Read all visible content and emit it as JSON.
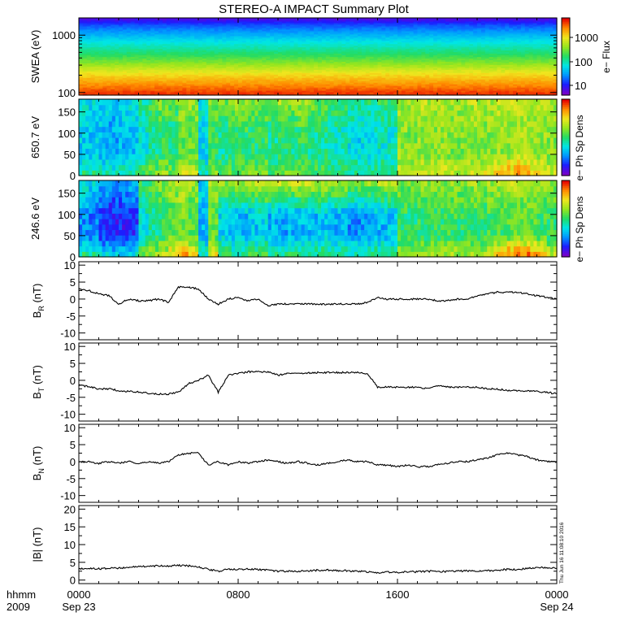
{
  "title": "STEREO-A IMPACT Summary Plot",
  "x_axis": {
    "ticks": [
      "0000",
      "0800",
      "1600",
      "0000"
    ],
    "date_ticks": [
      "Sep 23",
      "",
      "",
      "Sep 24"
    ],
    "unit_label": "hhmm",
    "year_label": "2009",
    "range_hours": [
      0,
      24
    ]
  },
  "timestamp": "Thu Jun 16 11:08:10 2016",
  "colors": {
    "line": "#000000",
    "colormap": [
      "#7a00c8",
      "#1c1cff",
      "#0096ff",
      "#00e6e6",
      "#23dc64",
      "#96e61e",
      "#f0e61e",
      "#ff8c00",
      "#e60000"
    ]
  },
  "chart_data": [
    {
      "type": "heatmap",
      "panel": "swea",
      "ylabel": "SWEA (eV)",
      "yscale": "log",
      "ylim": [
        90,
        2000
      ],
      "yticks": [
        "1000",
        "100"
      ],
      "colorbar": {
        "label": "e− Flux",
        "scale": "log",
        "ticks": [
          "1000",
          "100",
          "10"
        ]
      },
      "bands_eV": [
        100,
        150,
        220,
        320,
        470,
        700,
        1000,
        1500,
        2000
      ],
      "band_levels": [
        0.95,
        0.85,
        0.75,
        0.62,
        0.5,
        0.4,
        0.3,
        0.18,
        0.05
      ]
    },
    {
      "type": "heatmap",
      "panel": "pad-650",
      "ylabel": "650.7 eV",
      "ylim": [
        0,
        180
      ],
      "yticks": [
        "150",
        "100",
        "50",
        "0"
      ],
      "colorbar": {
        "label": "e− Ph Sp Dens"
      },
      "x_hours": [
        0,
        0.5,
        1,
        1.5,
        2,
        2.5,
        3,
        3.5,
        4,
        4.5,
        5,
        5.5,
        6,
        6.5,
        7,
        7.5,
        8,
        8.5,
        9,
        9.5,
        10,
        10.5,
        11,
        11.5,
        12,
        12.5,
        13,
        13.5,
        14,
        14.5,
        15,
        15.5,
        16,
        16.5,
        17,
        17.5,
        18,
        18.5,
        19,
        19.5,
        20,
        20.5,
        21,
        21.5,
        22,
        22.5,
        23,
        23.5
      ],
      "base_level": [
        0.33,
        0.32,
        0.3,
        0.28,
        0.3,
        0.32,
        0.4,
        0.45,
        0.5,
        0.46,
        0.58,
        0.57,
        0.35,
        0.5,
        0.45,
        0.47,
        0.5,
        0.48,
        0.5,
        0.45,
        0.5,
        0.47,
        0.5,
        0.45,
        0.45,
        0.42,
        0.4,
        0.38,
        0.35,
        0.38,
        0.4,
        0.4,
        0.62,
        0.6,
        0.62,
        0.6,
        0.62,
        0.6,
        0.6,
        0.62,
        0.6,
        0.6,
        0.62,
        0.62,
        0.64,
        0.62,
        0.62,
        0.6
      ],
      "high_pitch_boost": [
        0.05,
        0.05,
        0.05,
        0.05,
        0.05,
        0.05,
        0.05,
        0.08,
        0.1,
        0.1,
        0.05,
        0.05,
        0.05,
        0.1,
        0.15,
        0.18,
        0.15,
        0.12,
        0.1,
        0.1,
        0.15,
        0.15,
        0.15,
        0.15,
        0.12,
        0.1,
        0.1,
        0.1,
        0.1,
        0.1,
        0.1,
        0.1,
        0.02,
        0.05,
        0.05,
        0.05,
        0.05,
        0.05,
        0.05,
        0.05,
        0.05,
        0.05,
        0.05,
        0.05,
        0.05,
        0.05,
        0.05,
        0.05
      ],
      "low_pitch_boost": [
        0.15,
        0.15,
        0.15,
        0.15,
        0.15,
        0.15,
        0.15,
        0.15,
        0.15,
        0.15,
        0.12,
        0.1,
        0.1,
        0.1,
        0.1,
        0.1,
        0.1,
        0.1,
        0.1,
        0.1,
        0.1,
        0.1,
        0.1,
        0.1,
        0.1,
        0.1,
        0.1,
        0.1,
        0.1,
        0.1,
        0.1,
        0.1,
        0.08,
        0.08,
        0.08,
        0.08,
        0.08,
        0.08,
        0.08,
        0.1,
        0.12,
        0.18,
        0.22,
        0.25,
        0.25,
        0.2,
        0.15,
        0.1
      ]
    },
    {
      "type": "heatmap",
      "panel": "pad-246",
      "ylabel": "246.6 eV",
      "ylim": [
        0,
        180
      ],
      "yticks": [
        "150",
        "100",
        "50",
        "0"
      ],
      "colorbar": {
        "label": "e− Ph Sp Dens"
      },
      "x_hours": [
        0,
        0.5,
        1,
        1.5,
        2,
        2.5,
        3,
        3.5,
        4,
        4.5,
        5,
        5.5,
        6,
        6.5,
        7,
        7.5,
        8,
        8.5,
        9,
        9.5,
        10,
        10.5,
        11,
        11.5,
        12,
        12.5,
        13,
        13.5,
        14,
        14.5,
        15,
        15.5,
        16,
        16.5,
        17,
        17.5,
        18,
        18.5,
        19,
        19.5,
        20,
        20.5,
        21,
        21.5,
        22,
        22.5,
        23,
        23.5
      ],
      "base_level": [
        0.25,
        0.22,
        0.15,
        0.12,
        0.12,
        0.15,
        0.4,
        0.45,
        0.5,
        0.55,
        0.6,
        0.55,
        0.3,
        0.55,
        0.35,
        0.3,
        0.3,
        0.32,
        0.35,
        0.3,
        0.28,
        0.3,
        0.3,
        0.3,
        0.32,
        0.3,
        0.28,
        0.25,
        0.25,
        0.3,
        0.3,
        0.32,
        0.5,
        0.48,
        0.5,
        0.5,
        0.5,
        0.52,
        0.5,
        0.52,
        0.5,
        0.52,
        0.52,
        0.55,
        0.55,
        0.55,
        0.52,
        0.5
      ],
      "high_pitch_boost": [
        0.15,
        0.15,
        0.15,
        0.15,
        0.15,
        0.15,
        0.1,
        0.1,
        0.1,
        0.1,
        0.08,
        0.08,
        0.05,
        0.1,
        0.3,
        0.35,
        0.38,
        0.38,
        0.4,
        0.4,
        0.42,
        0.4,
        0.42,
        0.4,
        0.38,
        0.38,
        0.38,
        0.38,
        0.35,
        0.35,
        0.38,
        0.38,
        0.1,
        0.12,
        0.12,
        0.12,
        0.12,
        0.12,
        0.12,
        0.12,
        0.12,
        0.12,
        0.12,
        0.12,
        0.12,
        0.12,
        0.12,
        0.12
      ],
      "low_pitch_boost": [
        0.25,
        0.25,
        0.25,
        0.25,
        0.25,
        0.25,
        0.2,
        0.2,
        0.2,
        0.25,
        0.25,
        0.2,
        0.15,
        0.2,
        0.2,
        0.2,
        0.2,
        0.2,
        0.2,
        0.2,
        0.2,
        0.2,
        0.2,
        0.2,
        0.2,
        0.2,
        0.2,
        0.2,
        0.2,
        0.2,
        0.2,
        0.2,
        0.15,
        0.15,
        0.15,
        0.15,
        0.15,
        0.15,
        0.15,
        0.15,
        0.15,
        0.25,
        0.35,
        0.38,
        0.38,
        0.38,
        0.35,
        0.2
      ]
    },
    {
      "type": "line",
      "panel": "br",
      "ylabel": "B",
      "ylabel_sub": "R",
      "ylabel_unit": " (nT)",
      "ylim": [
        -12,
        11
      ],
      "yticks": [
        10,
        5,
        0,
        -5,
        -10
      ],
      "x": [
        0,
        0.5,
        1,
        1.5,
        2,
        2.5,
        3,
        3.5,
        4,
        4.5,
        5,
        5.5,
        6,
        6.5,
        7,
        7.5,
        8,
        8.5,
        9,
        9.5,
        10,
        10.5,
        11,
        11.5,
        12,
        12.5,
        13,
        13.5,
        14,
        14.5,
        15,
        15.5,
        16,
        16.5,
        17,
        17.5,
        18,
        18.5,
        19,
        19.5,
        20,
        20.5,
        21,
        21.5,
        22,
        22.5,
        23,
        23.5,
        24
      ],
      "y": [
        3,
        2.5,
        1.5,
        1,
        -1.5,
        0,
        -0.5,
        -0.5,
        0,
        -1,
        3.5,
        3.5,
        3,
        0,
        -1.5,
        0,
        0.5,
        -0.5,
        0,
        -2,
        -1.5,
        -1.5,
        -1.5,
        -1.5,
        -1.5,
        -1.5,
        -1.5,
        -1.5,
        -1.5,
        -1,
        0.5,
        0,
        0,
        0,
        0,
        0,
        -0.5,
        -0.5,
        0,
        0,
        1,
        1.5,
        2,
        2,
        2,
        1.5,
        1,
        0.5,
        0
      ]
    },
    {
      "type": "line",
      "panel": "bt",
      "ylabel": "B",
      "ylabel_sub": "T",
      "ylabel_unit": " (nT)",
      "ylim": [
        -12,
        11
      ],
      "yticks": [
        10,
        5,
        0,
        -5,
        -10
      ],
      "x": [
        0,
        0.5,
        1,
        1.5,
        2,
        2.5,
        3,
        3.5,
        4,
        4.5,
        5,
        5.5,
        6,
        6.5,
        7,
        7.5,
        8,
        8.5,
        9,
        9.5,
        10,
        10.5,
        11,
        11.5,
        12,
        12.5,
        13,
        13.5,
        14,
        14.5,
        15,
        15.5,
        16,
        16.5,
        17,
        17.5,
        18,
        18.5,
        19,
        19.5,
        20,
        20.5,
        21,
        21.5,
        22,
        22.5,
        23,
        23.5,
        24
      ],
      "y": [
        -1.5,
        -1.8,
        -2.5,
        -2.5,
        -3,
        -3.3,
        -3.5,
        -3.8,
        -4,
        -4,
        -3.5,
        -1,
        0,
        1.5,
        -3.5,
        1.5,
        2,
        2.5,
        2.5,
        2.5,
        1.5,
        2,
        2,
        2.2,
        2.3,
        2.3,
        2.3,
        2.3,
        2.3,
        2,
        -2,
        -2,
        -2,
        -2,
        -2,
        -2.5,
        -1.5,
        -2,
        -2,
        -2,
        -2,
        -2.5,
        -2.5,
        -3,
        -3,
        -3.2,
        -3.3,
        -3.5,
        -4
      ]
    },
    {
      "type": "line",
      "panel": "bn",
      "ylabel": "B",
      "ylabel_sub": "N",
      "ylabel_unit": " (nT)",
      "ylim": [
        -12,
        11
      ],
      "yticks": [
        10,
        5,
        0,
        -5,
        -10
      ],
      "x": [
        0,
        0.5,
        1,
        1.5,
        2,
        2.5,
        3,
        3.5,
        4,
        4.5,
        5,
        5.5,
        6,
        6.5,
        7,
        7.5,
        8,
        8.5,
        9,
        9.5,
        10,
        10.5,
        11,
        11.5,
        12,
        12.5,
        13,
        13.5,
        14,
        14.5,
        15,
        15.5,
        16,
        16.5,
        17,
        17.5,
        18,
        18.5,
        19,
        19.5,
        20,
        20.5,
        21,
        21.5,
        22,
        22.5,
        23,
        23.5,
        24
      ],
      "y": [
        0,
        0,
        -0.5,
        0,
        -0.5,
        0,
        -0.5,
        0,
        -0.5,
        0,
        2,
        2.5,
        2.5,
        -1,
        0,
        -1,
        0,
        -0.5,
        0,
        0.5,
        0,
        -0.5,
        0,
        -0.5,
        -1,
        -0.5,
        0,
        0.5,
        0,
        0,
        -1,
        -1,
        -1.5,
        -1,
        -1.5,
        -1.5,
        -1,
        -0.5,
        0,
        0,
        0.5,
        1,
        2,
        2.5,
        2,
        1.5,
        0.5,
        0,
        0
      ]
    },
    {
      "type": "line",
      "panel": "bmag",
      "ylabel": "|B| (nT)",
      "ylim": [
        -1,
        21
      ],
      "yticks": [
        20,
        15,
        10,
        5,
        0
      ],
      "x": [
        0,
        0.5,
        1,
        1.5,
        2,
        2.5,
        3,
        3.5,
        4,
        4.5,
        5,
        5.5,
        6,
        6.5,
        7,
        7.5,
        8,
        8.5,
        9,
        9.5,
        10,
        10.5,
        11,
        11.5,
        12,
        12.5,
        13,
        13.5,
        14,
        14.5,
        15,
        15.5,
        16,
        16.5,
        17,
        17.5,
        18,
        18.5,
        19,
        19.5,
        20,
        20.5,
        21,
        21.5,
        22,
        22.5,
        23,
        23.5,
        24
      ],
      "y": [
        3.2,
        3.3,
        3.2,
        3.3,
        3.4,
        3.6,
        3.8,
        3.9,
        4,
        4,
        4.1,
        4,
        3.8,
        3,
        2.5,
        3,
        3,
        3.1,
        3,
        2.8,
        2.5,
        2.5,
        2.5,
        2.6,
        2.8,
        2.8,
        2.7,
        2.6,
        2.5,
        2.3,
        2,
        2.2,
        2.2,
        2.3,
        2.3,
        2.5,
        2.4,
        2.4,
        2.5,
        2.6,
        2.6,
        2.6,
        2.8,
        3,
        3,
        3.2,
        3.5,
        3.5,
        3.3
      ]
    }
  ]
}
